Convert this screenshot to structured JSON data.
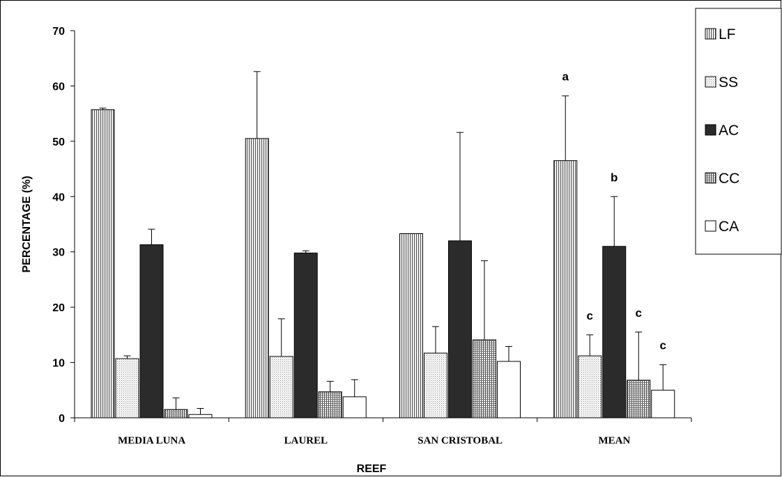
{
  "chart_data": {
    "type": "bar",
    "title": "",
    "xlabel": "REEF",
    "ylabel": "PERCENTAGE (%)",
    "ylim": [
      0,
      70
    ],
    "yticks": [
      "0",
      "10",
      "20",
      "30",
      "40",
      "50",
      "60",
      "70"
    ],
    "categories": [
      "MEDIA LUNA",
      "LAUREL",
      "SAN CRISTOBAL",
      "MEAN"
    ],
    "legend_position": "top-right",
    "series": [
      {
        "name": "LF",
        "pattern": "vertical-lines",
        "values": [
          55.7,
          50.5,
          33.3,
          46.5
        ],
        "errors": [
          0.3,
          12.1,
          0.0,
          11.7
        ]
      },
      {
        "name": "SS",
        "pattern": "dots",
        "values": [
          10.7,
          11.1,
          11.7,
          11.2
        ],
        "errors": [
          0.5,
          6.8,
          4.8,
          3.8
        ]
      },
      {
        "name": "AC",
        "pattern": "solid-dark",
        "values": [
          31.3,
          29.8,
          32.0,
          31.0
        ],
        "errors": [
          2.8,
          0.4,
          19.6,
          9.0
        ]
      },
      {
        "name": "CC",
        "pattern": "grid",
        "values": [
          1.5,
          4.7,
          14.1,
          6.8
        ],
        "errors": [
          2.1,
          1.9,
          14.3,
          8.7
        ]
      },
      {
        "name": "CA",
        "pattern": "white",
        "values": [
          0.6,
          3.8,
          10.2,
          5.0
        ],
        "errors": [
          1.1,
          3.1,
          2.7,
          4.6
        ]
      }
    ],
    "annotations": [
      {
        "category": "MEAN",
        "series": "LF",
        "text": "a"
      },
      {
        "category": "MEAN",
        "series": "AC",
        "text": "b"
      },
      {
        "category": "MEAN",
        "series": "SS",
        "text": "c"
      },
      {
        "category": "MEAN",
        "series": "CC",
        "text": "c"
      },
      {
        "category": "MEAN",
        "series": "CA",
        "text": "c"
      }
    ]
  }
}
